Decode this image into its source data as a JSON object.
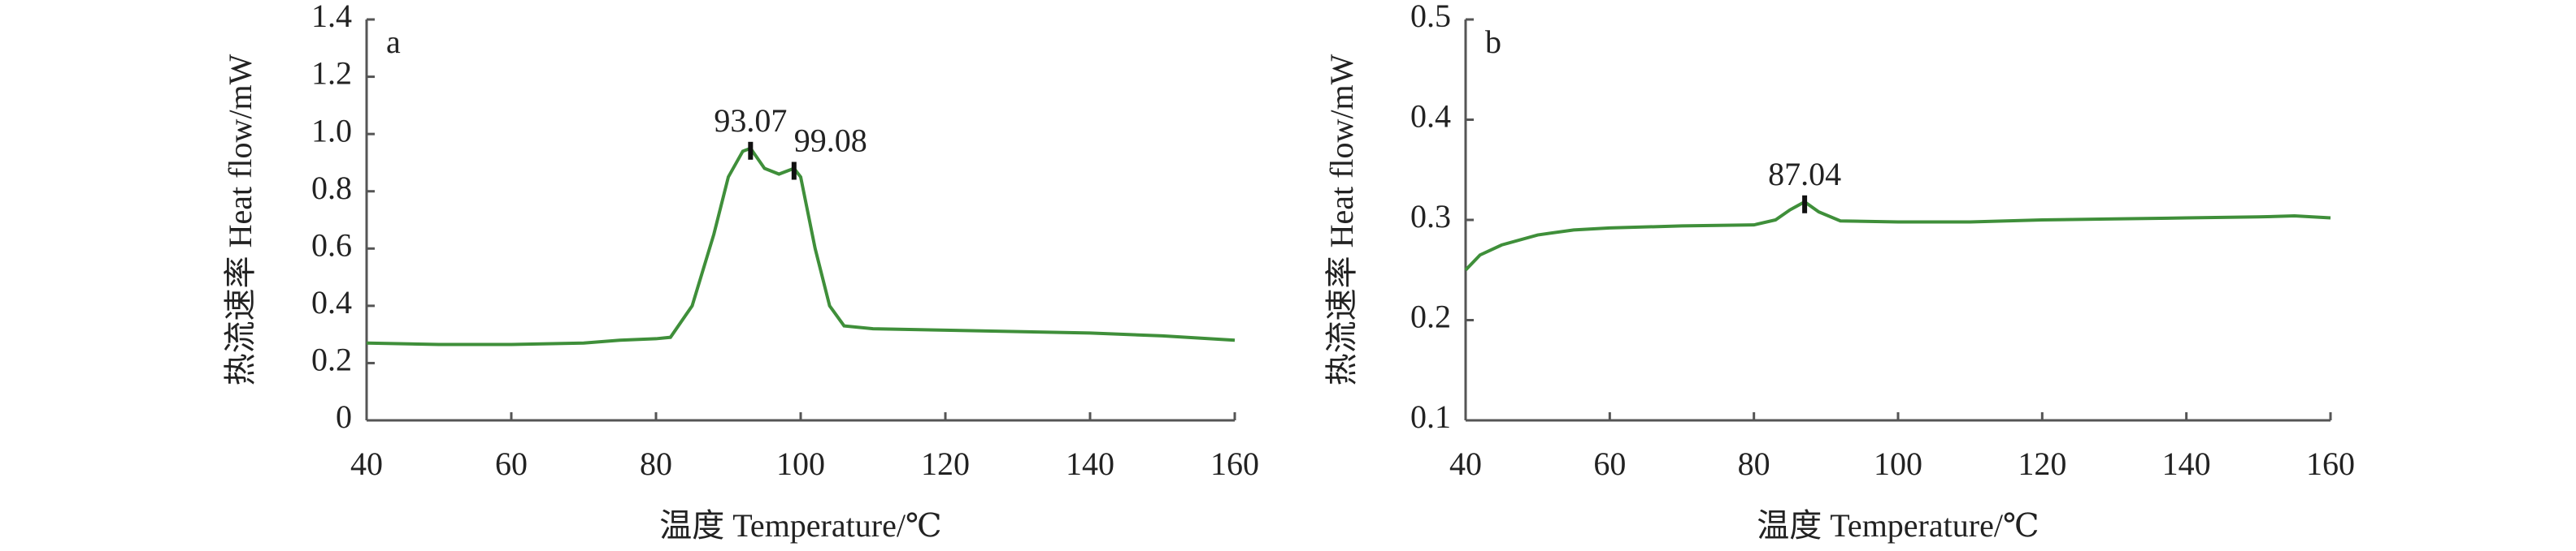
{
  "chart_data": [
    {
      "type": "line",
      "panel_label": "a",
      "xlabel": "温度 Temperature/℃",
      "ylabel": "热流速率 Heat flow/mW",
      "xlim": [
        40,
        160
      ],
      "xticks": [
        40,
        60,
        80,
        100,
        120,
        140,
        160
      ],
      "ylim": [
        0,
        1.4
      ],
      "yticks": [
        0,
        0.2,
        0.4,
        0.6,
        0.8,
        {
          "value": 1,
          "label": "1.0"
        },
        1.2,
        1.4
      ],
      "x": [
        40,
        50,
        60,
        70,
        75,
        80,
        82,
        85,
        88,
        90,
        92,
        93.07,
        95,
        97,
        99.08,
        100,
        102,
        104,
        106,
        110,
        120,
        130,
        140,
        150,
        160
      ],
      "series": [
        {
          "color": "#3f8f3a",
          "values": [
            0.27,
            0.265,
            0.265,
            0.27,
            0.28,
            0.285,
            0.29,
            0.4,
            0.65,
            0.85,
            0.94,
            0.95,
            0.88,
            0.86,
            0.88,
            0.85,
            0.6,
            0.4,
            0.33,
            0.32,
            0.315,
            0.31,
            0.305,
            0.295,
            0.28
          ]
        }
      ],
      "annotations": [
        {
          "text": "93.07",
          "x": 93.07,
          "y": 0.95
        },
        {
          "text": "99.08",
          "x": 99.08,
          "y": 0.88
        }
      ]
    },
    {
      "type": "line",
      "panel_label": "b",
      "xlabel": "温度 Temperature/℃",
      "ylabel": "热流速率 Heat flow/mW",
      "xlim": [
        40,
        160
      ],
      "xticks": [
        40,
        60,
        80,
        100,
        120,
        140,
        160
      ],
      "ylim": [
        0.1,
        0.5
      ],
      "yticks": [
        0.1,
        0.2,
        0.3,
        0.4,
        0.5
      ],
      "x": [
        40,
        42,
        45,
        50,
        55,
        60,
        70,
        80,
        83,
        85,
        87.04,
        89,
        92,
        100,
        110,
        120,
        130,
        140,
        150,
        155,
        160
      ],
      "series": [
        {
          "color": "#3f8f3a",
          "values": [
            0.25,
            0.265,
            0.275,
            0.285,
            0.29,
            0.292,
            0.294,
            0.295,
            0.3,
            0.31,
            0.318,
            0.308,
            0.299,
            0.298,
            0.298,
            0.3,
            0.301,
            0.302,
            0.303,
            0.304,
            0.302
          ]
        }
      ],
      "annotations": [
        {
          "text": "87.04",
          "x": 87.04,
          "y": 0.318
        }
      ]
    }
  ]
}
